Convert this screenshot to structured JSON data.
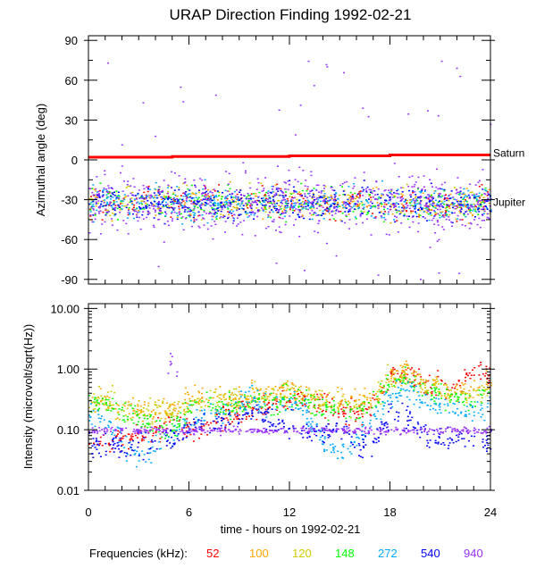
{
  "chart_data": [
    {
      "type": "scatter",
      "title": "URAP Direction Finding  1992-02-21",
      "ylabel": "Azimuthal angle (deg)",
      "ylim": [
        -93.5,
        93.5
      ],
      "xlim": [
        0,
        24
      ],
      "yticks": [
        "90",
        "60",
        "30",
        "0",
        "-30",
        "-60",
        "-90"
      ],
      "ytick_values": [
        90,
        60,
        30,
        0,
        -30,
        -60,
        -90
      ],
      "reference_lines": [
        {
          "label": "Saturn",
          "color": "#ff0000",
          "x": [
            0,
            5,
            5,
            12,
            12,
            18,
            18,
            24
          ],
          "y": [
            2,
            2,
            2.5,
            2.5,
            3,
            3,
            3.7,
            3.7
          ]
        },
        {
          "label": "Jupiter",
          "value": -32
        }
      ],
      "azimuth_cluster_center_deg": -32,
      "grid": false
    },
    {
      "type": "scatter",
      "ylabel": "Intensity (microvolt/sqrt(Hz))",
      "yscale": "log",
      "ylim": [
        0.01,
        12
      ],
      "xlim": [
        0,
        24
      ],
      "yticks": [
        "10.00",
        "1.00",
        "0.10",
        "0.01"
      ],
      "ytick_values": [
        10,
        1,
        0.1,
        0.01
      ],
      "xticks": [
        "0",
        "6",
        "12",
        "18",
        "24"
      ],
      "xtick_values": [
        0,
        6,
        12,
        18,
        24
      ],
      "xlabel": "time - hours on 1992-02-21",
      "x_hours": [
        0,
        1,
        2,
        3,
        4,
        5,
        6,
        7,
        8,
        9,
        10,
        11,
        12,
        13,
        14,
        15,
        16,
        17,
        18,
        19,
        20,
        21,
        22,
        23,
        24
      ],
      "series": [
        {
          "name": "52",
          "color": "#ff0000",
          "values": [
            0.06,
            0.06,
            0.07,
            0.08,
            0.1,
            0.15,
            0.1,
            0.12,
            0.15,
            0.2,
            0.25,
            0.3,
            0.3,
            0.3,
            0.25,
            0.2,
            0.2,
            0.25,
            0.8,
            0.9,
            0.6,
            0.6,
            0.5,
            1.0,
            0.8
          ]
        },
        {
          "name": "100",
          "color": "#ffa500",
          "values": [
            0.3,
            0.3,
            0.25,
            0.2,
            0.2,
            0.25,
            0.3,
            0.35,
            0.3,
            0.35,
            0.4,
            0.4,
            0.5,
            0.4,
            0.35,
            0.3,
            0.3,
            0.35,
            0.8,
            0.9,
            0.6,
            0.5,
            0.4,
            0.5,
            0.6
          ]
        },
        {
          "name": "120",
          "color": "#cccc00",
          "values": [
            0.3,
            0.3,
            0.25,
            0.2,
            0.2,
            0.2,
            0.3,
            0.3,
            0.3,
            0.3,
            0.4,
            0.35,
            0.45,
            0.35,
            0.3,
            0.3,
            0.25,
            0.3,
            0.7,
            0.8,
            0.5,
            0.5,
            0.35,
            0.4,
            0.5
          ]
        },
        {
          "name": "148",
          "color": "#00ff00",
          "values": [
            0.3,
            0.25,
            0.2,
            0.15,
            0.1,
            0.1,
            0.25,
            0.3,
            0.25,
            0.3,
            0.3,
            0.3,
            0.35,
            0.3,
            0.25,
            0.2,
            0.2,
            0.3,
            0.6,
            0.7,
            0.45,
            0.4,
            0.3,
            0.3,
            0.4
          ]
        },
        {
          "name": "272",
          "color": "#00aaff",
          "values": [
            0.2,
            0.15,
            0.06,
            0.04,
            0.05,
            0.08,
            0.15,
            0.2,
            0.2,
            0.25,
            0.3,
            0.25,
            0.3,
            0.2,
            0.06,
            0.04,
            0.08,
            0.15,
            0.4,
            0.5,
            0.3,
            0.25,
            0.2,
            0.2,
            0.25
          ]
        },
        {
          "name": "540",
          "color": "#0000ff",
          "values": [
            0.06,
            0.06,
            0.05,
            0.06,
            0.06,
            0.07,
            0.1,
            0.15,
            0.12,
            0.18,
            0.2,
            0.15,
            0.12,
            0.1,
            0.08,
            0.1,
            0.06,
            0.06,
            0.2,
            0.15,
            0.08,
            0.07,
            0.07,
            0.06,
            0.06
          ]
        },
        {
          "name": "940",
          "color": "#9933ff",
          "values": [
            0.12,
            0.11,
            0.1,
            0.1,
            0.1,
            2.5,
            0.1,
            0.11,
            0.1,
            0.12,
            0.11,
            0.1,
            0.1,
            0.1,
            0.1,
            0.1,
            0.1,
            0.1,
            0.12,
            0.12,
            0.1,
            0.1,
            0.1,
            0.1,
            0.1
          ]
        }
      ],
      "grid": false
    }
  ],
  "legend": {
    "label": "Frequencies (kHz):",
    "items": [
      "52",
      "100",
      "120",
      "148",
      "272",
      "540",
      "940"
    ],
    "placement": "bottom"
  }
}
